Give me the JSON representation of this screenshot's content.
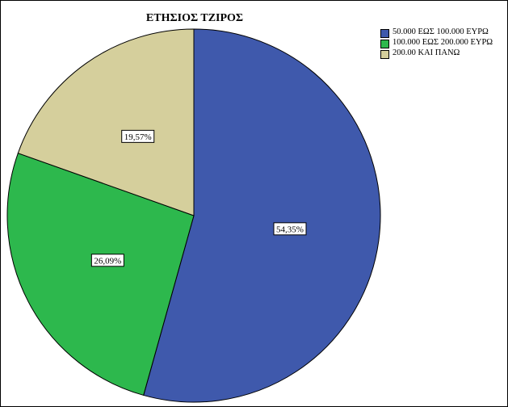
{
  "chart_data": {
    "type": "pie",
    "title": "ΕΤΗΣΙΟΣ ΤΖΙΡΟΣ",
    "legend_position": "top-right",
    "slices": [
      {
        "name": "50.000 ΕΩΣ 100.000 ΕΥΡΩ",
        "value": 54.35,
        "label": "54,35%",
        "color": "#3f59ac"
      },
      {
        "name": "100.000 ΕΩΣ 200.000 ΕΥΡΩ",
        "value": 26.09,
        "label": "26,09%",
        "color": "#2db84d"
      },
      {
        "name": "200.00 ΚΑΙ ΠΑΝΩ",
        "value": 19.57,
        "label": "19,57%",
        "color": "#d5cf9c"
      }
    ]
  }
}
